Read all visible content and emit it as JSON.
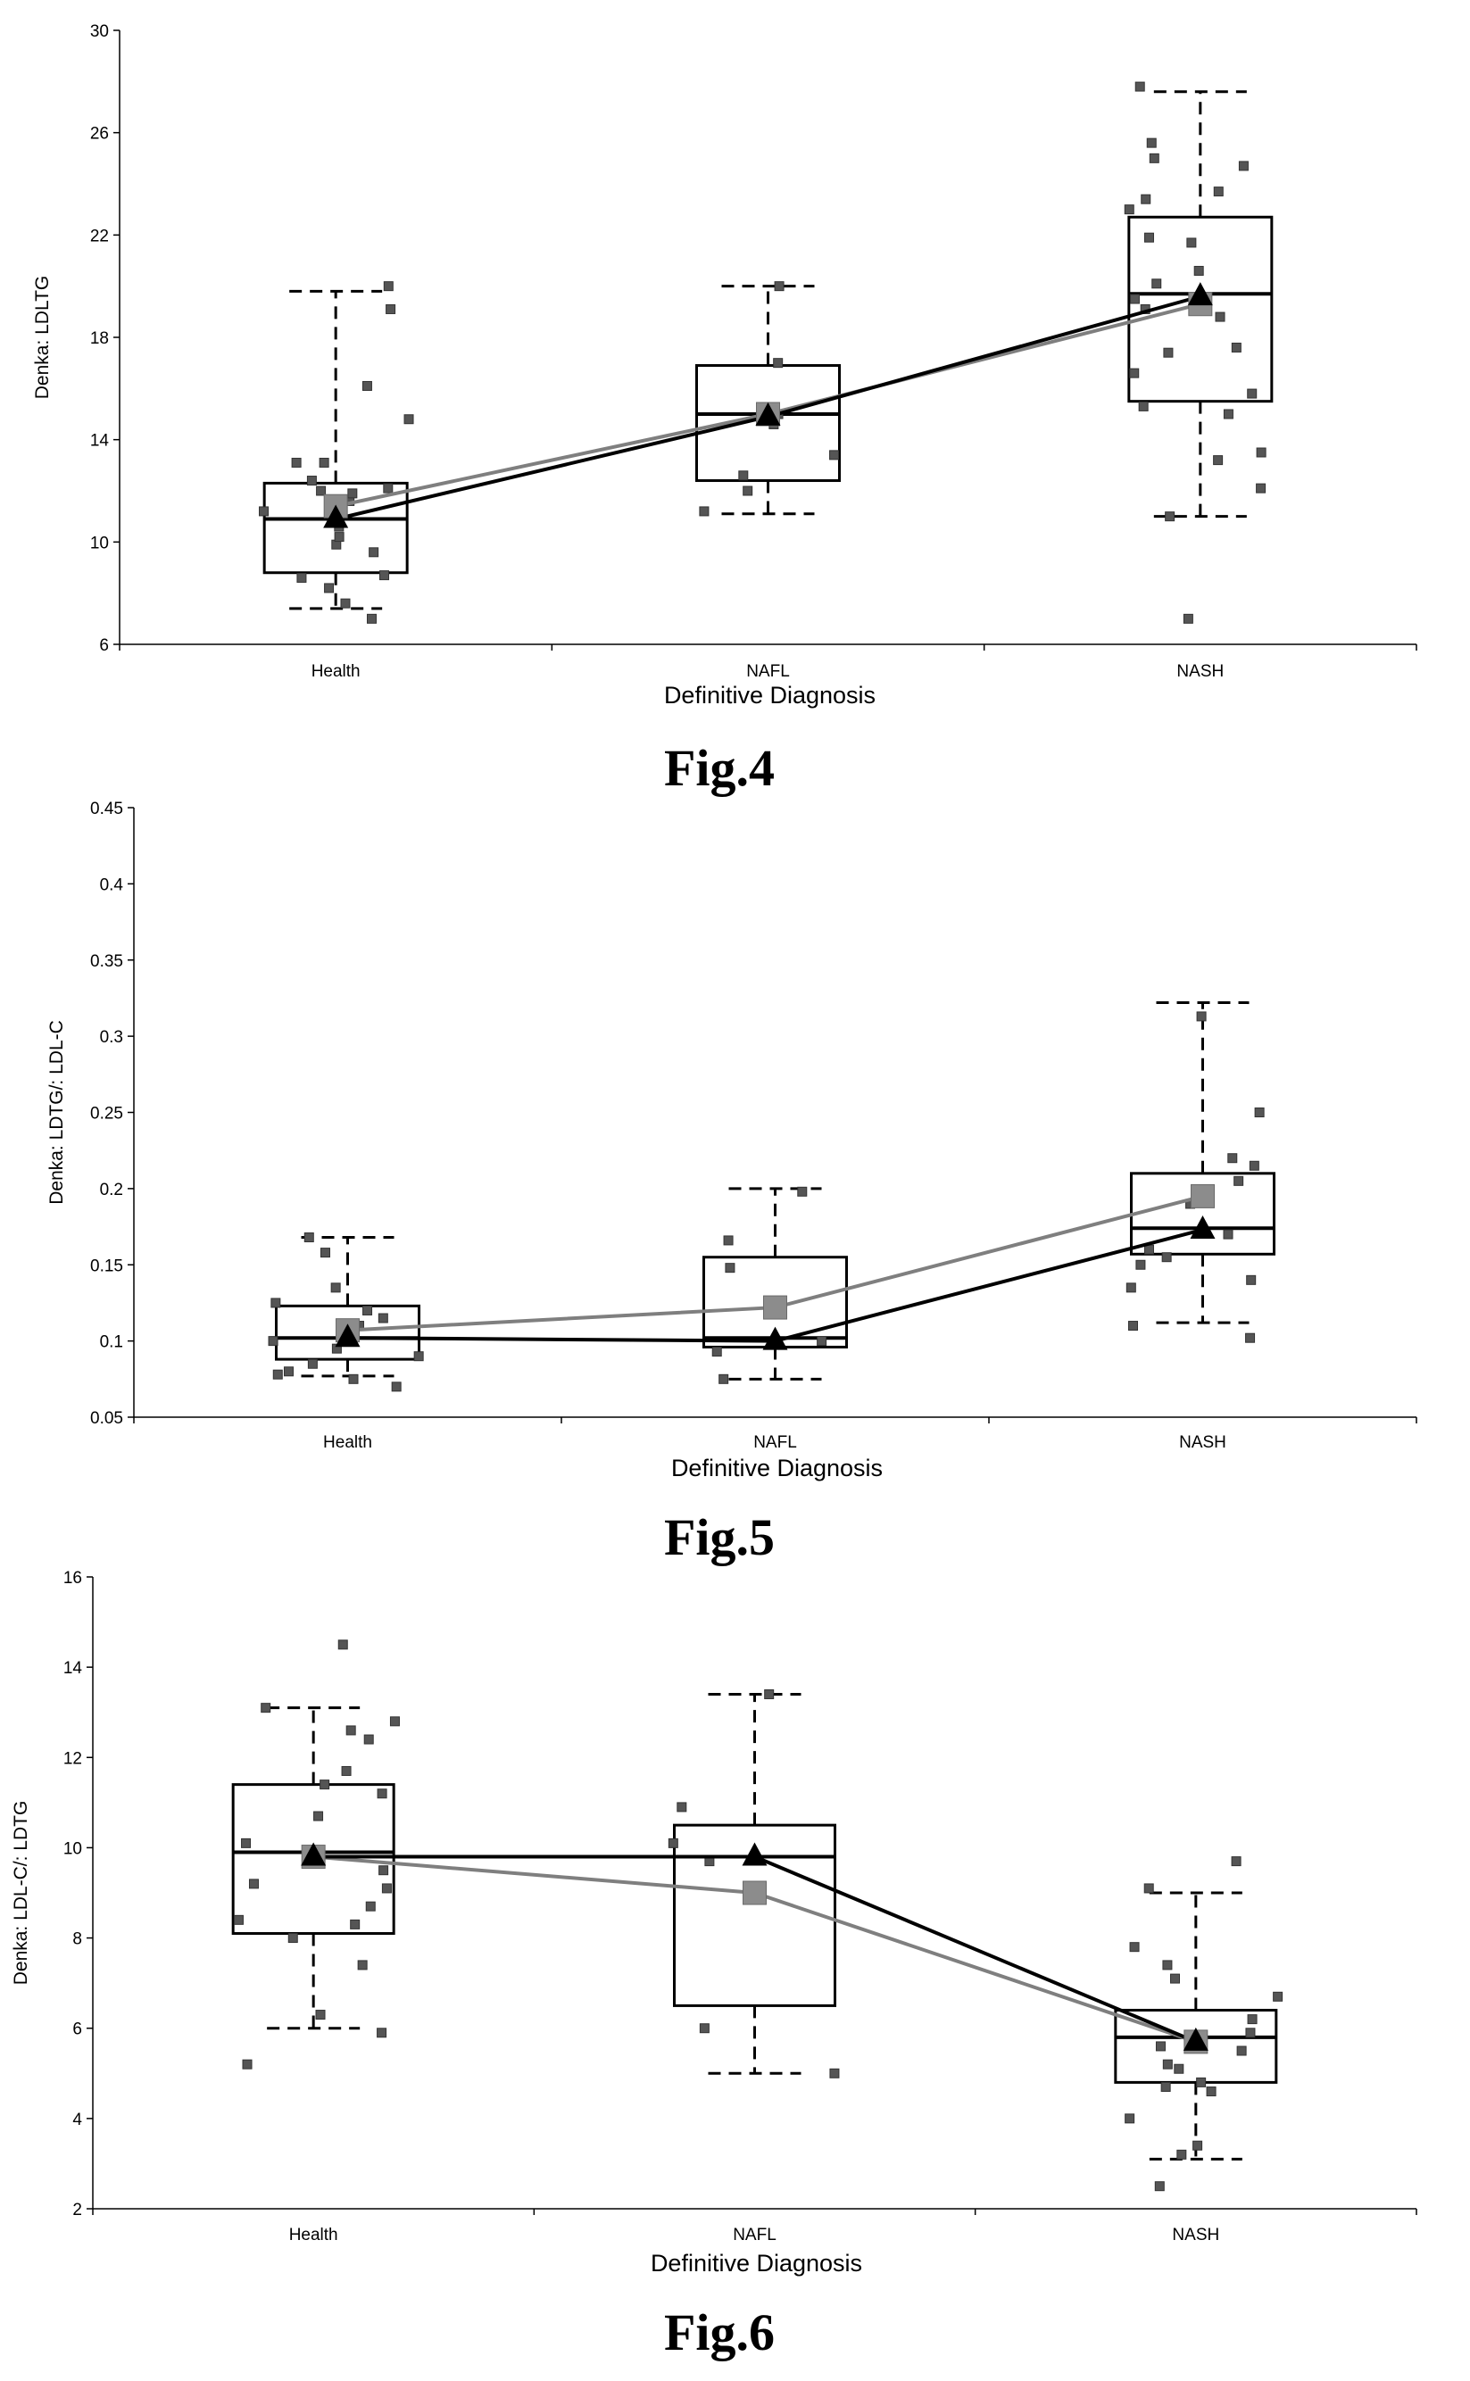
{
  "colors": {
    "box": "#000000",
    "median_line": "#000000",
    "mean_line": "#7f7f7f",
    "points": "#555555",
    "background": "#ffffff"
  },
  "chart_data": [
    {
      "type": "box",
      "figure_label": "Fig.4",
      "title": "",
      "xlabel": "Definitive Diagnosis",
      "ylabel": "Denka: LDLTG",
      "ylim": [
        6,
        30
      ],
      "yticks": [
        "6",
        "10",
        "14",
        "18",
        "22",
        "26",
        "30"
      ],
      "categories": [
        "Health",
        "NAFL",
        "NASH"
      ],
      "boxes": [
        {
          "q1": 8.8,
          "median": 10.9,
          "q3": 12.3,
          "whisker_low": 7.4,
          "whisker_high": 19.8
        },
        {
          "q1": 12.4,
          "median": 15.0,
          "q3": 16.9,
          "whisker_low": 11.1,
          "whisker_high": 20.0
        },
        {
          "q1": 15.5,
          "median": 19.7,
          "q3": 22.7,
          "whisker_low": 11.0,
          "whisker_high": 27.6
        }
      ],
      "series": [
        {
          "marker": "triangle",
          "values": [
            10.9,
            14.9,
            19.6
          ]
        },
        {
          "marker": "square",
          "values": [
            11.4,
            15.0,
            19.3
          ]
        }
      ],
      "points": [
        [
          7.0,
          7.6,
          8.2,
          8.6,
          8.7,
          9.6,
          9.9,
          10.2,
          10.6,
          11.2,
          11.6,
          11.9,
          12.0,
          12.1,
          12.4,
          13.1,
          13.1,
          14.8,
          16.1,
          19.1,
          20.0
        ],
        [
          11.2,
          12.0,
          12.6,
          13.4,
          14.6,
          15.0,
          17.0,
          20.0
        ],
        [
          7.0,
          11.0,
          12.1,
          13.2,
          13.5,
          15.0,
          15.3,
          15.8,
          16.6,
          17.4,
          17.6,
          18.8,
          19.1,
          19.5,
          20.1,
          20.6,
          21.7,
          21.9,
          23.0,
          23.4,
          23.7,
          24.7,
          25.0,
          25.6,
          27.8
        ]
      ]
    },
    {
      "type": "box",
      "figure_label": "Fig.5",
      "title": "",
      "xlabel": "Definitive Diagnosis",
      "ylabel": "Denka: LDTG/: LDL-C",
      "ylim": [
        0.05,
        0.45
      ],
      "yticks": [
        "0.05",
        "0.1",
        "0.15",
        "0.2",
        "0.25",
        "0.3",
        "0.35",
        "0.4",
        "0.45"
      ],
      "categories": [
        "Health",
        "NAFL",
        "NASH"
      ],
      "boxes": [
        {
          "q1": 0.088,
          "median": 0.102,
          "q3": 0.123,
          "whisker_low": 0.077,
          "whisker_high": 0.168
        },
        {
          "q1": 0.096,
          "median": 0.102,
          "q3": 0.155,
          "whisker_low": 0.075,
          "whisker_high": 0.2
        },
        {
          "q1": 0.157,
          "median": 0.174,
          "q3": 0.21,
          "whisker_low": 0.112,
          "whisker_high": 0.322
        }
      ],
      "series": [
        {
          "marker": "triangle",
          "values": [
            0.102,
            0.1,
            0.173
          ]
        },
        {
          "marker": "square",
          "values": [
            0.107,
            0.122,
            0.195
          ]
        }
      ],
      "points": [
        [
          0.07,
          0.075,
          0.078,
          0.08,
          0.085,
          0.09,
          0.095,
          0.1,
          0.105,
          0.11,
          0.115,
          0.12,
          0.125,
          0.135,
          0.158,
          0.168
        ],
        [
          0.075,
          0.093,
          0.1,
          0.148,
          0.166,
          0.198
        ],
        [
          0.102,
          0.11,
          0.135,
          0.14,
          0.15,
          0.155,
          0.16,
          0.17,
          0.19,
          0.205,
          0.215,
          0.22,
          0.25,
          0.313
        ]
      ]
    },
    {
      "type": "box",
      "figure_label": "Fig.6",
      "title": "",
      "xlabel": "Definitive Diagnosis",
      "ylabel": "Denka: LDL-C/: LDTG",
      "ylim": [
        2,
        16
      ],
      "yticks": [
        "2",
        "4",
        "6",
        "8",
        "10",
        "12",
        "14",
        "16"
      ],
      "categories": [
        "Health",
        "NAFL",
        "NASH"
      ],
      "boxes": [
        {
          "q1": 8.1,
          "median": 9.9,
          "q3": 11.4,
          "whisker_low": 6.0,
          "whisker_high": 13.1
        },
        {
          "q1": 6.5,
          "median": 9.8,
          "q3": 10.5,
          "whisker_low": 5.0,
          "whisker_high": 13.4
        },
        {
          "q1": 4.8,
          "median": 5.8,
          "q3": 6.4,
          "whisker_low": 3.1,
          "whisker_high": 9.0
        }
      ],
      "series": [
        {
          "marker": "triangle",
          "values": [
            9.8,
            9.8,
            5.7
          ]
        },
        {
          "marker": "square",
          "values": [
            9.8,
            9.0,
            5.7
          ]
        }
      ],
      "points": [
        [
          5.2,
          5.9,
          6.3,
          7.4,
          8.0,
          8.3,
          8.4,
          8.7,
          9.1,
          9.2,
          9.5,
          10.1,
          10.7,
          11.2,
          11.4,
          11.7,
          12.4,
          12.6,
          12.8,
          13.1,
          14.5
        ],
        [
          5.0,
          6.0,
          9.7,
          10.1,
          10.9,
          13.4
        ],
        [
          2.5,
          3.2,
          3.4,
          4.0,
          4.6,
          4.7,
          4.8,
          5.1,
          5.2,
          5.5,
          5.6,
          5.9,
          6.2,
          6.7,
          7.1,
          7.4,
          7.8,
          9.1,
          9.7
        ]
      ]
    }
  ]
}
